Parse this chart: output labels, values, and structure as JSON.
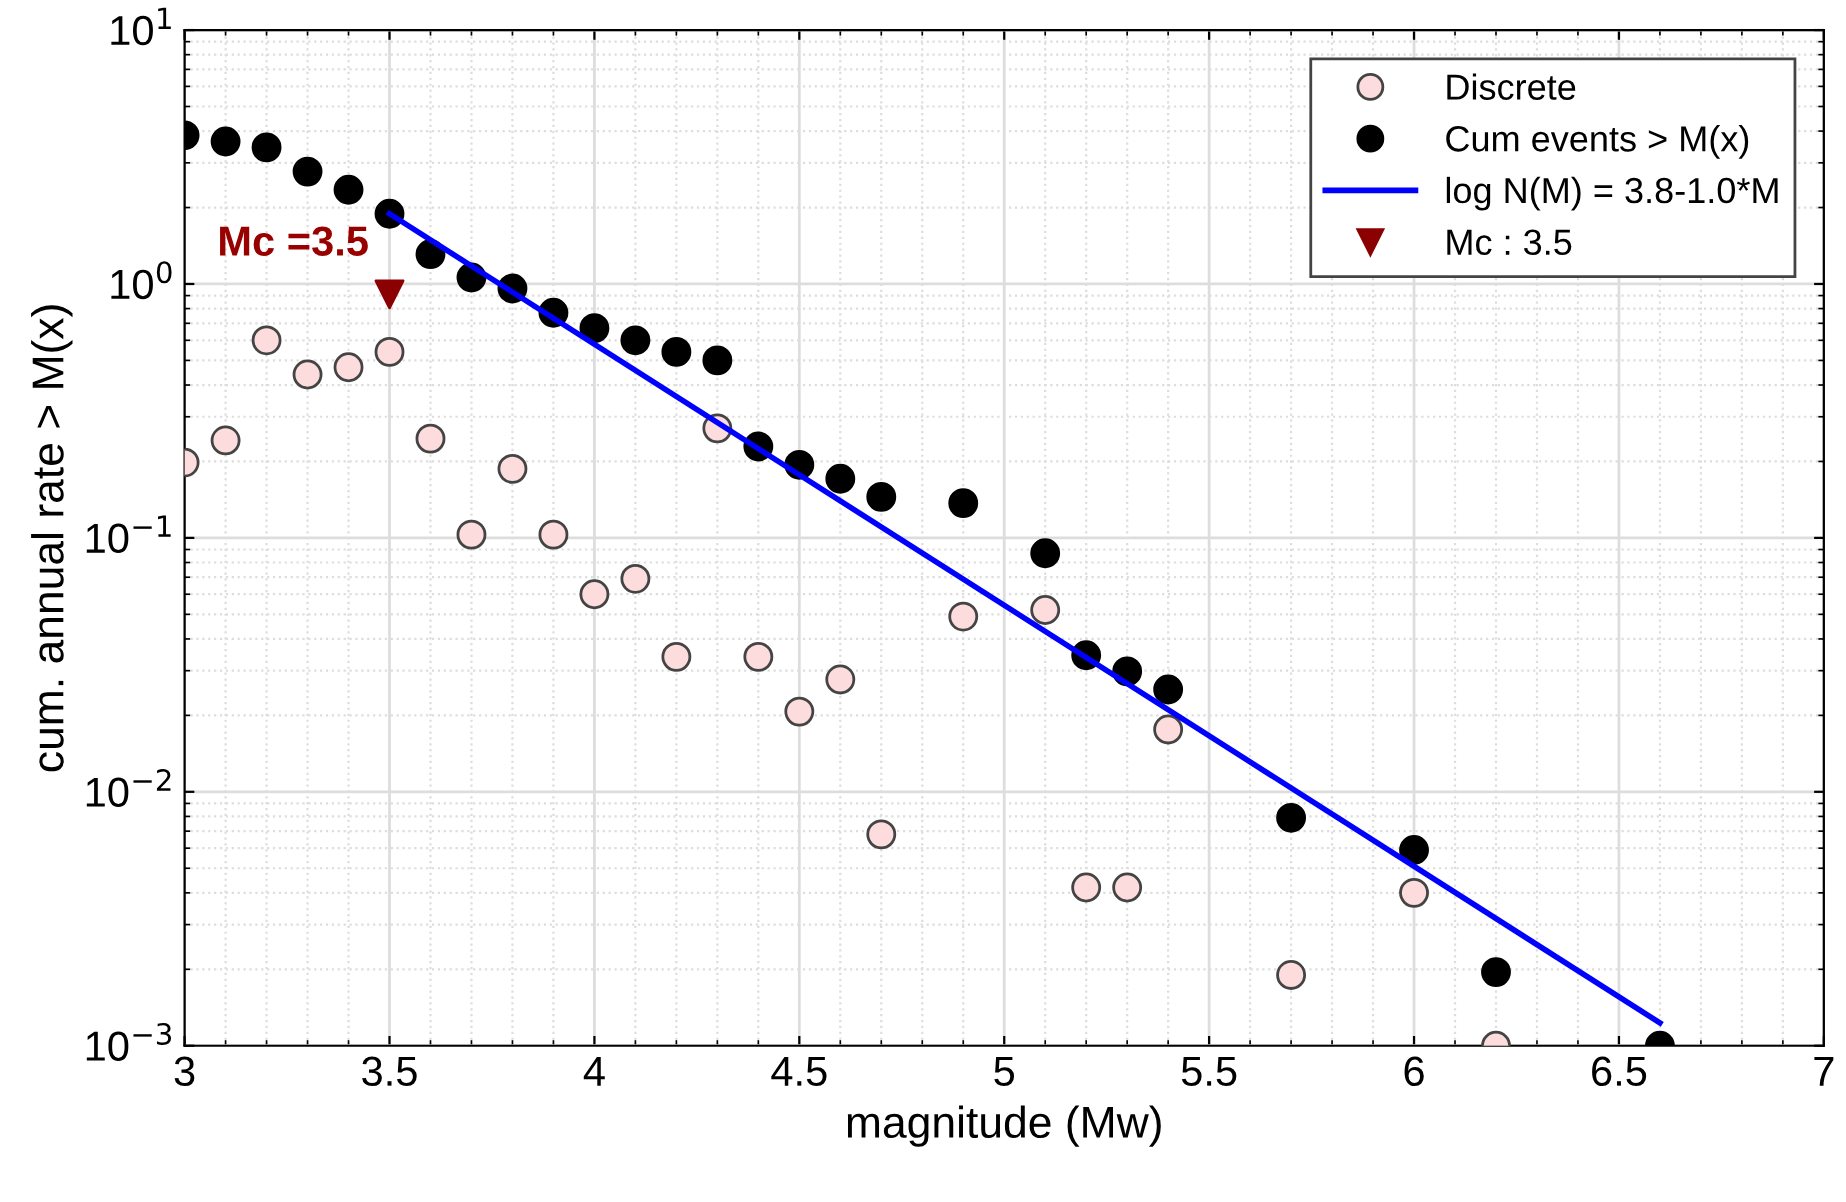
{
  "chart_data": {
    "type": "scatter",
    "xlabel": "magnitude (Mw)",
    "ylabel": "cum. annual rate > M(x)",
    "log": "y",
    "xlim": [
      3,
      7
    ],
    "xticks": [
      3,
      3.5,
      4,
      4.5,
      5,
      5.5,
      6,
      6.5,
      7
    ],
    "ylim": [
      0.001,
      10
    ],
    "yticks": [
      {
        "value": 0.001,
        "label": "10$^{−3}$"
      },
      {
        "value": 0.01,
        "label": "10$^{−2}$"
      },
      {
        "value": 0.1,
        "label": "10$^{−1}$"
      },
      {
        "value": 1,
        "label": "10$^{0}$"
      },
      {
        "value": 10,
        "label": "10$^{1}$"
      }
    ],
    "grid": true,
    "legend": "top right",
    "annotations": [
      {
        "text": "Mc =3.5",
        "x": 3.5,
        "y": 0.91
      }
    ],
    "series": [
      {
        "name": "Discrete",
        "marker": "circle",
        "color": "#fcdcdc",
        "x": [
          3.0,
          3.1,
          3.2,
          3.3,
          3.4,
          3.5,
          3.6,
          3.7,
          3.8,
          3.9,
          4.0,
          4.1,
          4.2,
          4.3,
          4.4,
          4.5,
          4.6,
          4.7,
          4.9,
          5.1,
          5.2,
          5.3,
          5.4,
          5.7,
          6.0,
          6.2
        ],
        "values": [
          0.198,
          0.242,
          0.6,
          0.44,
          0.47,
          0.54,
          0.246,
          0.103,
          0.187,
          0.103,
          0.06,
          0.069,
          0.034,
          0.27,
          0.034,
          0.0207,
          0.0277,
          0.0068,
          0.049,
          0.052,
          0.0042,
          0.0042,
          0.0176,
          0.0019,
          0.004,
          0.001
        ]
      },
      {
        "name": "Cum events > M(x)",
        "marker": "circle",
        "color": "#000000",
        "x": [
          3.0,
          3.1,
          3.2,
          3.3,
          3.4,
          3.5,
          3.6,
          3.7,
          3.8,
          3.9,
          4.0,
          4.1,
          4.2,
          4.3,
          4.4,
          4.5,
          4.6,
          4.7,
          4.9,
          5.1,
          5.2,
          5.3,
          5.4,
          5.7,
          6.0,
          6.2,
          6.6
        ],
        "values": [
          3.85,
          3.64,
          3.45,
          2.77,
          2.35,
          1.89,
          1.31,
          1.06,
          0.96,
          0.77,
          0.67,
          0.6,
          0.54,
          0.5,
          0.229,
          0.194,
          0.171,
          0.145,
          0.137,
          0.087,
          0.0345,
          0.0298,
          0.0253,
          0.0079,
          0.0059,
          0.00195,
          0.001
        ]
      },
      {
        "name": "log N(M) = 3.8-1.0*M",
        "type": "line",
        "marker": "none",
        "line_style": "solid",
        "color": "#0000ff",
        "x": [
          3.5,
          6.6
        ],
        "values": [
          1.89,
          0.00123
        ]
      },
      {
        "name": "Mc : 3.5",
        "marker": "triangle",
        "color": "#8b0000",
        "x": [
          3.5
        ],
        "values": [
          0.91
        ]
      }
    ]
  }
}
